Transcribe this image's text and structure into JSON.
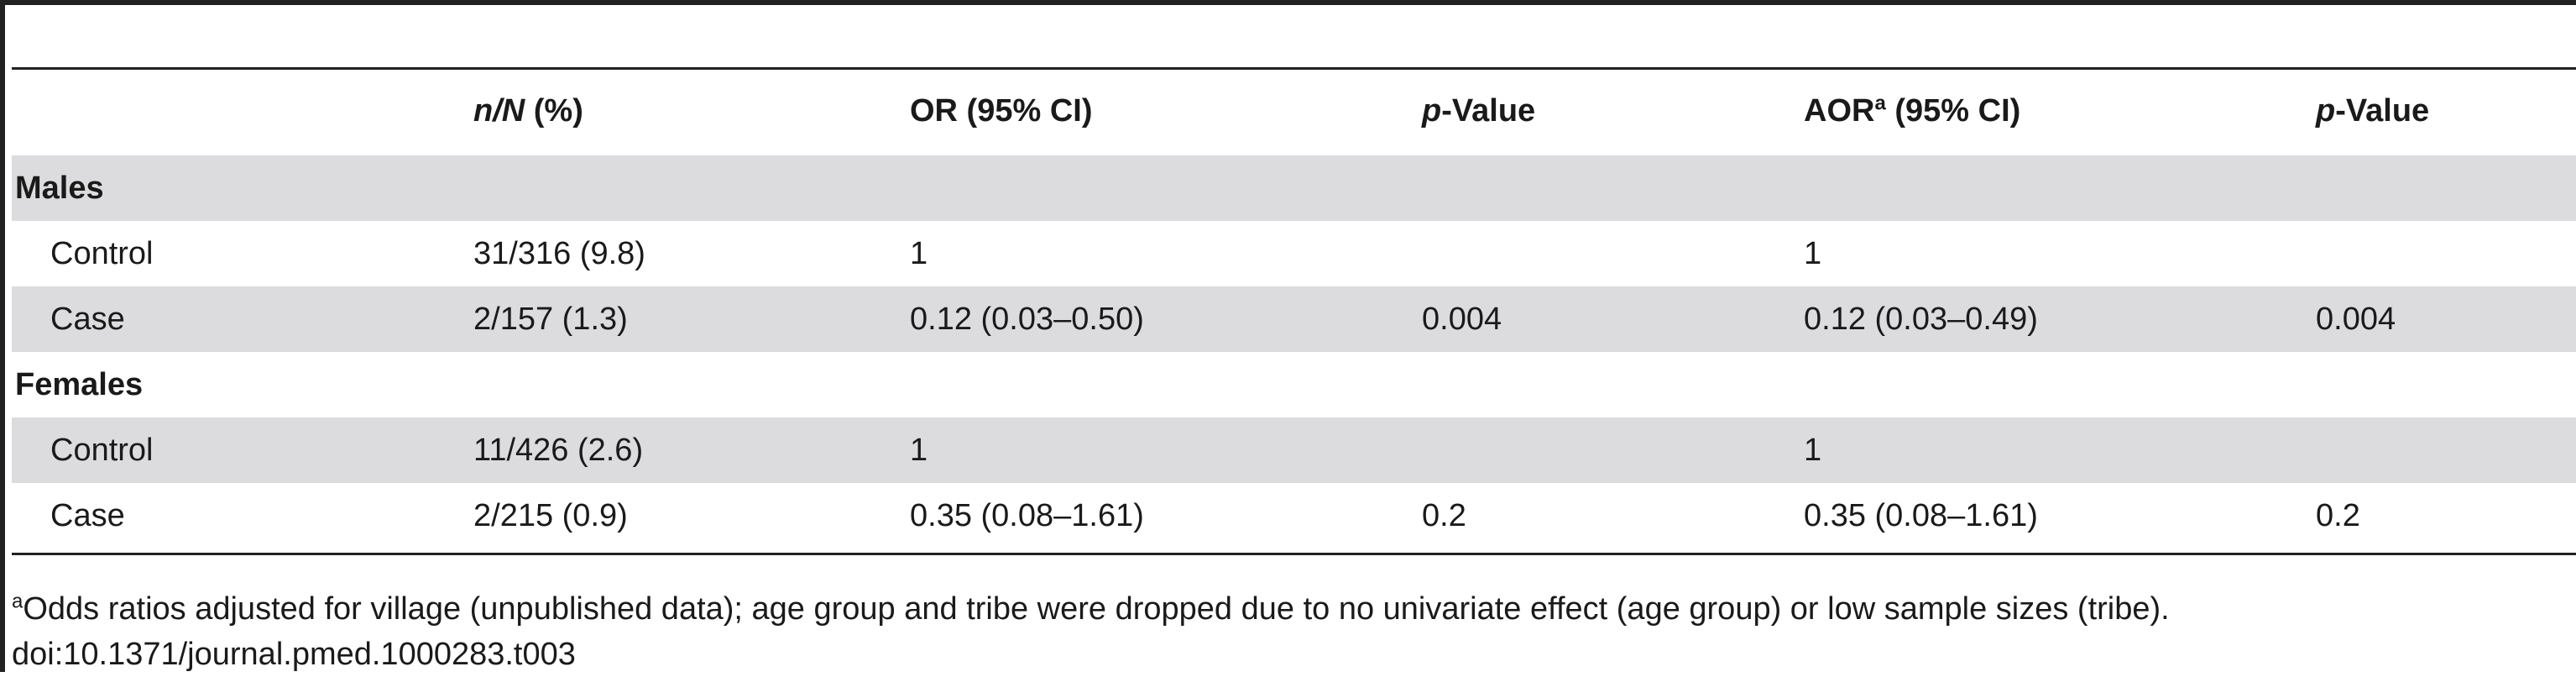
{
  "table": {
    "headers": {
      "nN_italic": "n/N",
      "nN_rest": " (%)",
      "or": "OR (95% CI)",
      "p1_italic": "p",
      "p1_rest": "-Value",
      "aor_main": "AOR",
      "aor_sup": "a",
      "aor_rest": " (95% CI)",
      "p2_italic": "p",
      "p2_rest": "-Value"
    },
    "sections": [
      {
        "label": "Males",
        "rows": [
          {
            "group": "Control",
            "nN": "31/316 (9.8)",
            "or": "1",
            "p": "",
            "aor": "1",
            "p_adj": ""
          },
          {
            "group": "Case",
            "nN": "2/157 (1.3)",
            "or": "0.12 (0.03–0.50)",
            "p": "0.004",
            "aor": "0.12 (0.03–0.49)",
            "p_adj": "0.004"
          }
        ]
      },
      {
        "label": "Females",
        "rows": [
          {
            "group": "Control",
            "nN": "11/426 (2.6)",
            "or": "1",
            "p": "",
            "aor": "1",
            "p_adj": ""
          },
          {
            "group": "Case",
            "nN": "2/215 (0.9)",
            "or": "0.35 (0.08–1.61)",
            "p": "0.2",
            "aor": "0.35 (0.08–1.61)",
            "p_adj": "0.2"
          }
        ]
      }
    ]
  },
  "footnote": {
    "marker": "a",
    "text": "Odds ratios adjusted for village (unpublished data); age group and tribe were dropped due to no univariate effect (age group) or low sample sizes (tribe).",
    "doi": "doi:10.1371/journal.pmed.1000283.t003"
  }
}
